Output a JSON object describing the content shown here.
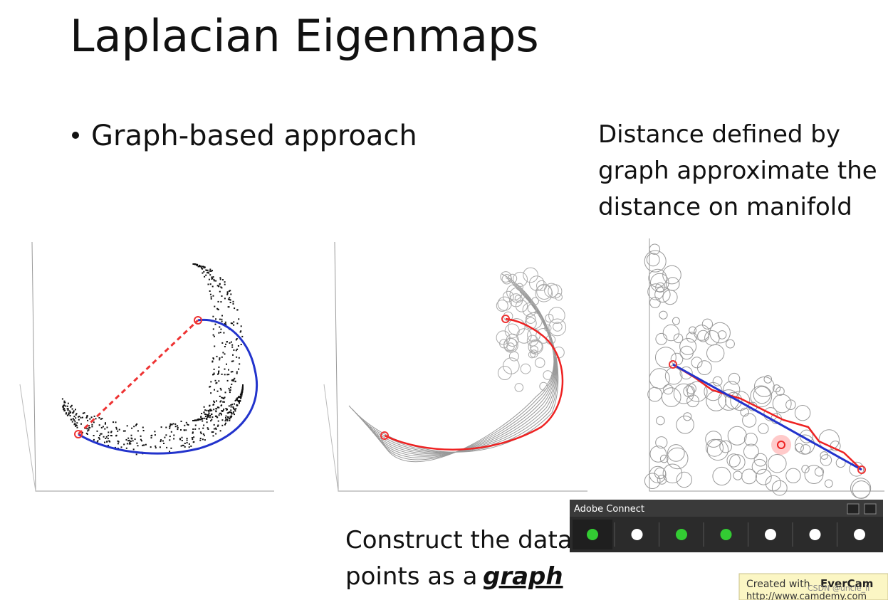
{
  "slide": {
    "title": "Laplacian Eigenmaps",
    "bullet": "Graph-based approach",
    "right_note": [
      "Distance defined by",
      "graph approximate the",
      "distance on manifold"
    ],
    "bottom_note": {
      "lines": [
        "Construct the data",
        "points as a"
      ],
      "emphasis": "graph"
    }
  },
  "toolbar": {
    "title": "Adobe Connect"
  },
  "watermark": {
    "prefix": "Created with",
    "brand": "EverCam",
    "url": "http://www.camdemy.com",
    "csdn": "CSDN @uncle_ll"
  }
}
